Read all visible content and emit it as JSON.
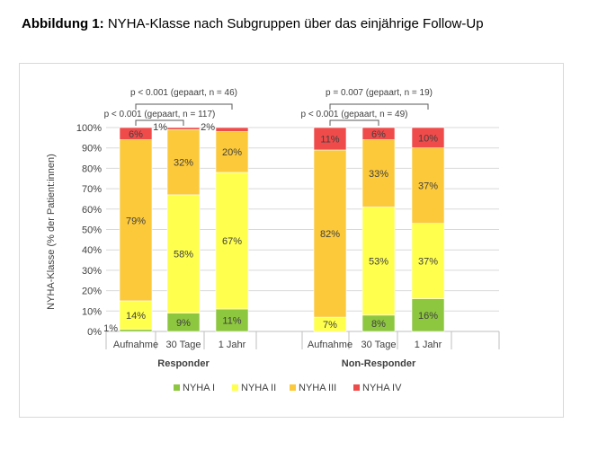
{
  "caption": {
    "label": "Abbildung 1:",
    "text": " NYHA-Klasse nach Subgruppen über das einjährige Follow-Up"
  },
  "chart_data": {
    "type": "bar",
    "stacked": true,
    "percent_stacked": true,
    "ylabel": "NYHA-Klasse (% der Patient:innen)",
    "ylim": [
      0,
      100
    ],
    "yticks": [
      "0%",
      "10%",
      "20%",
      "30%",
      "40%",
      "50%",
      "60%",
      "70%",
      "80%",
      "90%",
      "100%"
    ],
    "grid": true,
    "legend_position": "bottom",
    "groups": [
      {
        "name": "Responder",
        "categories": [
          "Aufnahme",
          "30 Tage",
          "1 Jahr"
        ],
        "series": [
          {
            "name": "NYHA I",
            "values": [
              1,
              9,
              11
            ],
            "labels": [
              "1%",
              "9%",
              "11%"
            ]
          },
          {
            "name": "NYHA II",
            "values": [
              14,
              58,
              67
            ],
            "labels": [
              "14%",
              "58%",
              "67%"
            ]
          },
          {
            "name": "NYHA III",
            "values": [
              79,
              32,
              20
            ],
            "labels": [
              "79%",
              "32%",
              "20%"
            ]
          },
          {
            "name": "NYHA IV",
            "values": [
              6,
              1,
              2
            ],
            "labels": [
              "6%",
              "1%",
              "2%"
            ]
          }
        ],
        "brackets": [
          {
            "from": 0,
            "to": 2,
            "text": "p  <  0.001 (gepaart, n =  46)"
          },
          {
            "from": 0,
            "to": 1,
            "text": "p  <  0.001 (gepaart, n =  117)"
          }
        ]
      },
      {
        "name": "Non-Responder",
        "categories": [
          "Aufnahme",
          "30 Tage",
          "1 Jahr"
        ],
        "series": [
          {
            "name": "NYHA I",
            "values": [
              0,
              8,
              16
            ],
            "labels": [
              "",
              "8%",
              "16%"
            ]
          },
          {
            "name": "NYHA II",
            "values": [
              7,
              53,
              37
            ],
            "labels": [
              "7%",
              "53%",
              "37%"
            ]
          },
          {
            "name": "NYHA III",
            "values": [
              82,
              33,
              37
            ],
            "labels": [
              "82%",
              "33%",
              "37%"
            ]
          },
          {
            "name": "NYHA IV",
            "values": [
              11,
              6,
              10
            ],
            "labels": [
              "11%",
              "6%",
              "10%"
            ]
          }
        ],
        "brackets": [
          {
            "from": 0,
            "to": 2,
            "text": "p =  0.007 (gepaart, n =  19)"
          },
          {
            "from": 0,
            "to": 1,
            "text": "p  <  0.001 (gepaart, n =  49)"
          }
        ]
      }
    ],
    "legend": [
      {
        "name": "NYHA I",
        "color": "#8dc63f"
      },
      {
        "name": "NYHA II",
        "color": "#ffff4d"
      },
      {
        "name": "NYHA III",
        "color": "#fcc93a"
      },
      {
        "name": "NYHA IV",
        "color": "#f04b4b"
      }
    ]
  }
}
